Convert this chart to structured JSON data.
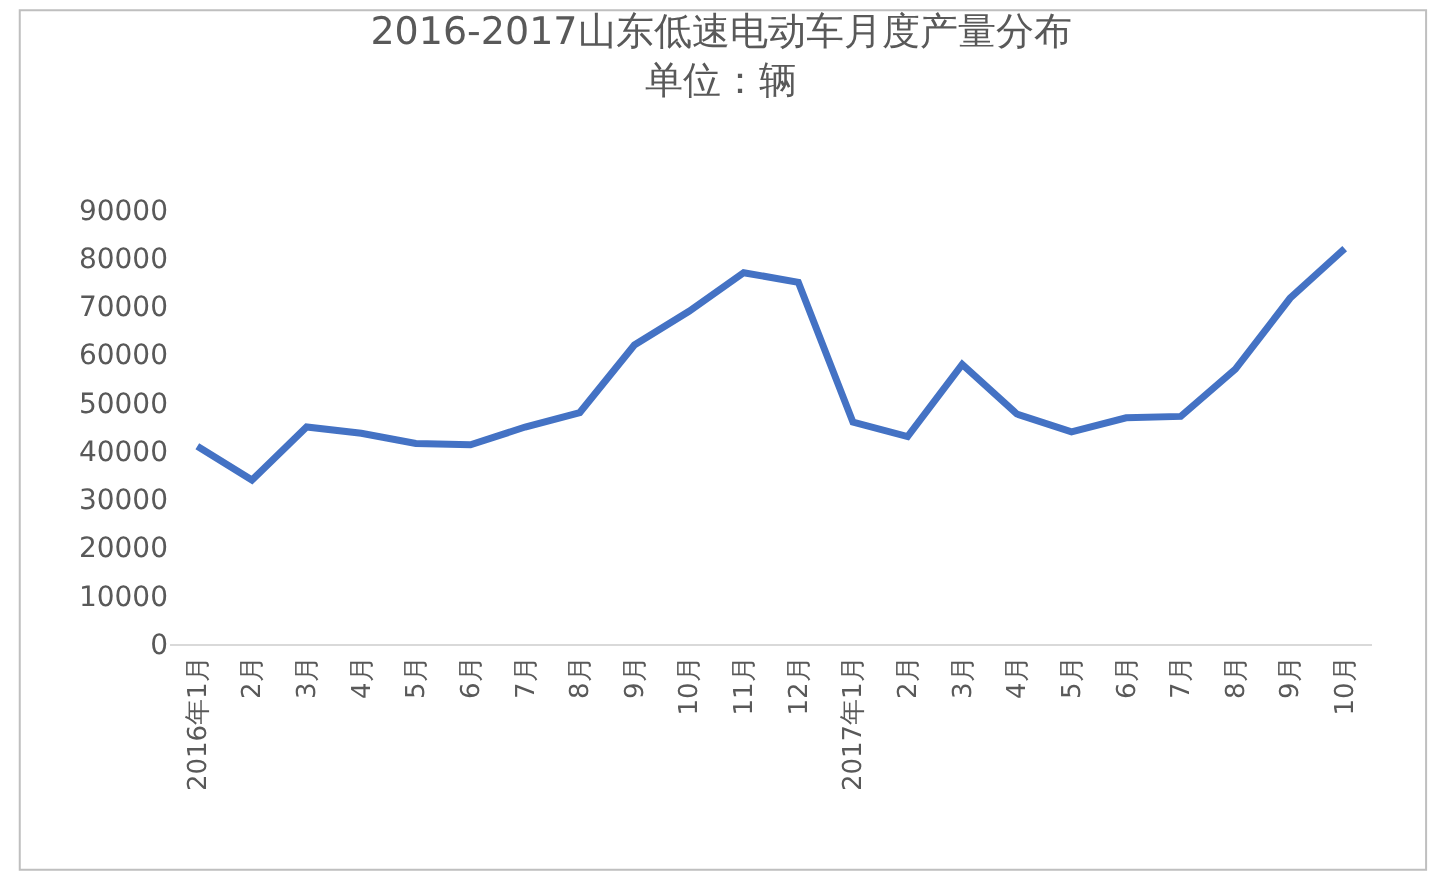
{
  "chart_data": {
    "type": "line",
    "title": "2016-2017山东低速电动车月度产量分布",
    "subtitle": "单位：辆",
    "categories": [
      "2016年1月",
      "2月",
      "3月",
      "4月",
      "5月",
      "6月",
      "7月",
      "8月",
      "9月",
      "10月",
      "11月",
      "12月",
      "2017年1月",
      "2月",
      "3月",
      "4月",
      "5月",
      "6月",
      "7月",
      "8月",
      "9月",
      "10月"
    ],
    "series": [
      {
        "color": "#4472c4",
        "values": [
          41000,
          34000,
          45000,
          43700,
          41600,
          41300,
          45000,
          48000,
          62000,
          69000,
          77000,
          75000,
          46000,
          43000,
          58000,
          47700,
          44000,
          46900,
          47200,
          57000,
          71700,
          82000
        ]
      }
    ],
    "ylim": [
      0,
      90000
    ],
    "yticks": [
      0,
      10000,
      20000,
      30000,
      40000,
      50000,
      60000,
      70000,
      80000,
      90000
    ],
    "legend": false,
    "marker": "none",
    "line_style": "solid"
  }
}
